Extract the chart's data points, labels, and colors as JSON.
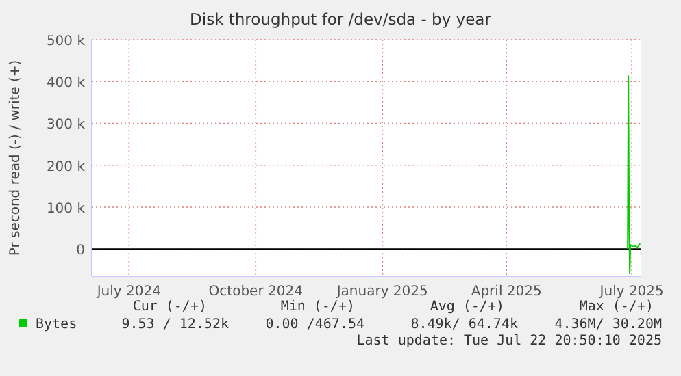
{
  "chart_data": {
    "type": "line",
    "title": "Disk throughput for /dev/sda - by year",
    "ylabel": "Pr second read (-) / write (+)",
    "xlim": [
      "2024-06-19",
      "2025-07-22T20:50"
    ],
    "xticks": [
      {
        "value": "2024-07-16",
        "label": "July 2024"
      },
      {
        "value": "2024-10-16",
        "label": "October 2024"
      },
      {
        "value": "2025-01-16",
        "label": "January 2025"
      },
      {
        "value": "2025-04-16",
        "label": "April 2025"
      },
      {
        "value": "2025-07-16",
        "label": "July 2025"
      }
    ],
    "ylim": [
      -65000,
      500000
    ],
    "yticks": [
      0,
      {
        "value": 100000,
        "label": "100 k"
      },
      {
        "value": 200000,
        "label": "200 k"
      },
      {
        "value": 300000,
        "label": "300 k"
      },
      {
        "value": 400000,
        "label": "400 k"
      },
      {
        "value": 500000,
        "label": "500 k"
      }
    ],
    "grid": true,
    "legend": "bottom",
    "line_style": "solid",
    "series": [
      {
        "name": "Bytes",
        "color": "#00cc00",
        "x": [
          "2025-07-13",
          "2025-07-13T12:00",
          "2025-07-14",
          "2025-07-14T12:00",
          "2025-07-15",
          "2025-07-17",
          "2025-07-18",
          "2025-07-20",
          "2025-07-22"
        ],
        "values": [
          0,
          413000,
          72000,
          -59000,
          10000,
          5000,
          8000,
          3000,
          13000
        ]
      }
    ],
    "annotations": [
      "Cur (-/+)",
      "Min (-/+)",
      "Avg (-/+)",
      "Max (-/+)",
      "9.53 / 12.52k",
      "0.00 /467.54",
      "8.49k/ 64.74k",
      "4.36M/ 30.20M",
      "Last update: Tue Jul 22 20:50:10 2025"
    ]
  }
}
